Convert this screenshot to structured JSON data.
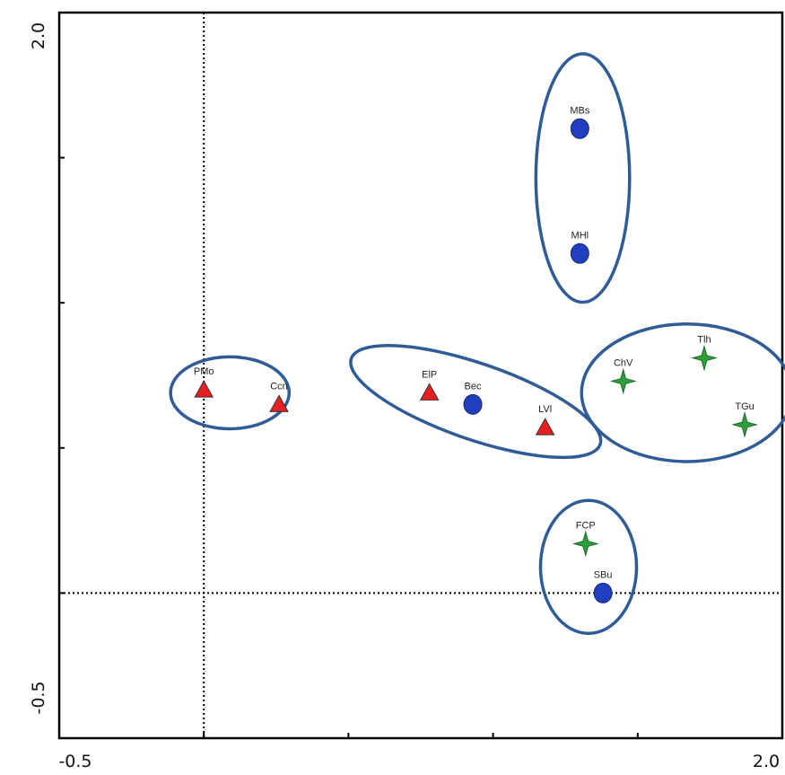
{
  "chart_data": {
    "type": "scatter",
    "title": "",
    "xlabel": "",
    "ylabel": "",
    "xlim": [
      -0.5,
      2.0
    ],
    "ylim": [
      -0.5,
      2.0
    ],
    "x_tick_labels": [
      "-0.5",
      "2.0"
    ],
    "y_tick_labels": [
      "2.0",
      "-0.5"
    ],
    "reference_lines": {
      "x": 0,
      "y": 0
    },
    "grid": false,
    "legend": "none",
    "colors": {
      "triangle": "#e62020",
      "circle": "#1f3fbf",
      "star": "#2e9e3a",
      "ellipse": "#2f5c96"
    },
    "points": [
      {
        "label": "PMo",
        "x": 0.0,
        "y": 0.7,
        "marker": "triangle"
      },
      {
        "label": "Ccn",
        "x": 0.26,
        "y": 0.65,
        "marker": "triangle"
      },
      {
        "label": "ElP",
        "x": 0.78,
        "y": 0.69,
        "marker": "triangle"
      },
      {
        "label": "Bec",
        "x": 0.93,
        "y": 0.65,
        "marker": "circle"
      },
      {
        "label": "LVl",
        "x": 1.18,
        "y": 0.57,
        "marker": "triangle"
      },
      {
        "label": "MBs",
        "x": 1.3,
        "y": 1.6,
        "marker": "circle"
      },
      {
        "label": "MHl",
        "x": 1.3,
        "y": 1.17,
        "marker": "circle"
      },
      {
        "label": "ChV",
        "x": 1.45,
        "y": 0.73,
        "marker": "star"
      },
      {
        "label": "Tlh",
        "x": 1.73,
        "y": 0.81,
        "marker": "star"
      },
      {
        "label": "TGu",
        "x": 1.87,
        "y": 0.58,
        "marker": "star"
      },
      {
        "label": "FCP",
        "x": 1.32,
        "y": 0.17,
        "marker": "star"
      },
      {
        "label": "SBu",
        "x": 1.38,
        "y": 0.0,
        "marker": "circle"
      }
    ],
    "groups": [
      {
        "cx": 0.09,
        "cy": 0.69,
        "rx": 0.205,
        "ry": 0.124
      },
      {
        "cx": 0.94,
        "cy": 0.66,
        "rx": 0.455,
        "ry": 0.131,
        "rotate": 19
      },
      {
        "cx": 1.31,
        "cy": 1.43,
        "rx": 0.162,
        "ry": 0.428
      },
      {
        "cx": 1.67,
        "cy": 0.69,
        "rx": 0.364,
        "ry": 0.237
      },
      {
        "cx": 1.33,
        "cy": 0.09,
        "rx": 0.166,
        "ry": 0.229
      }
    ]
  }
}
